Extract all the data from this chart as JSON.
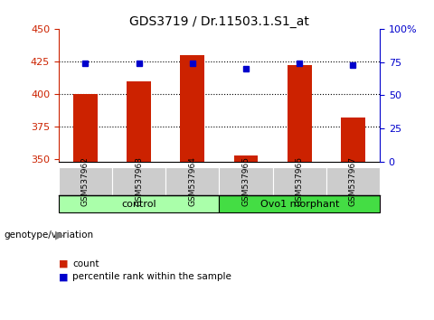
{
  "title": "GDS3719 / Dr.11503.1.S1_at",
  "samples": [
    "GSM537962",
    "GSM537963",
    "GSM537964",
    "GSM537965",
    "GSM537966",
    "GSM537967"
  ],
  "counts": [
    400,
    410,
    430,
    353,
    422,
    382
  ],
  "percentiles": [
    74,
    74,
    74,
    70,
    74,
    73
  ],
  "ylim_left": [
    348,
    450
  ],
  "ylim_right": [
    0,
    100
  ],
  "yticks_left": [
    350,
    375,
    400,
    425,
    450
  ],
  "yticks_right": [
    0,
    25,
    50,
    75,
    100
  ],
  "ytick_labels_right": [
    "0",
    "25",
    "50",
    "75",
    "100%"
  ],
  "bar_color": "#cc2200",
  "dot_color": "#0000cc",
  "bar_bottom": 348,
  "groups": [
    {
      "label": "control",
      "indices": [
        0,
        1,
        2
      ],
      "color": "#aaffaa"
    },
    {
      "label": "Ovo1 morphant",
      "indices": [
        3,
        4,
        5
      ],
      "color": "#44dd44"
    }
  ],
  "legend_items": [
    {
      "label": "count",
      "color": "#cc2200"
    },
    {
      "label": "percentile rank within the sample",
      "color": "#0000cc"
    }
  ],
  "genotype_label": "genotype/variation",
  "bg_color": "#ffffff",
  "left_tick_color": "#cc2200",
  "right_tick_color": "#0000cc",
  "sample_box_color": "#cccccc",
  "grid_dotted_color": "#000000"
}
